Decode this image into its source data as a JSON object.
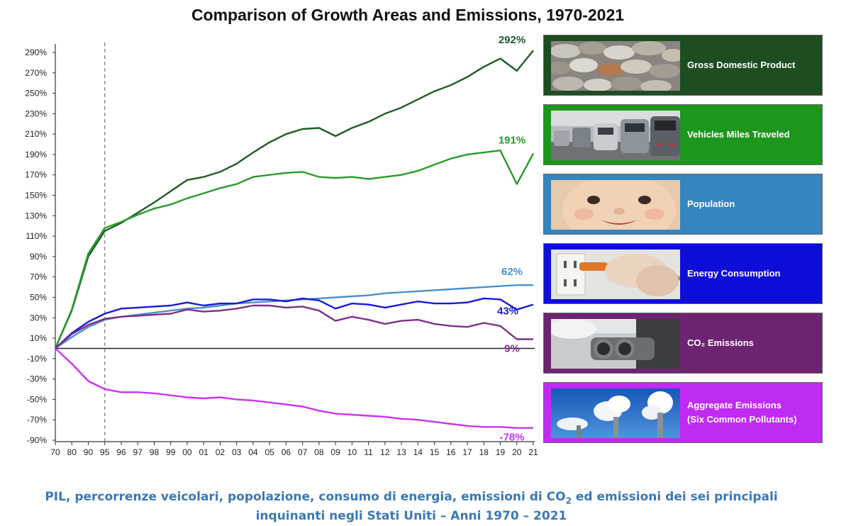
{
  "caption": {
    "line1_a": "PIL, percorrenze veicolari, popolazione, consumo di energia, emissioni di CO",
    "line1_sub": "2",
    "line1_b": " ed emissioni dei sei principali",
    "line2": "inquinanti negli Stati Uniti – Anni 1970 – 2021"
  },
  "chart_data": {
    "type": "line",
    "title": "Comparison of Growth Areas and Emissions, 1970-2021",
    "xlabel": "",
    "ylabel": "",
    "ylim": [
      -90,
      295
    ],
    "y_ticks": [
      "290%",
      "270%",
      "250%",
      "230%",
      "210%",
      "190%",
      "170%",
      "150%",
      "130%",
      "110%",
      "90%",
      "70%",
      "50%",
      "30%",
      "10%",
      "-10%",
      "-30%",
      "-50%",
      "-70%",
      "-90%"
    ],
    "y_tick_values": [
      290,
      270,
      250,
      230,
      210,
      190,
      170,
      150,
      130,
      110,
      90,
      70,
      50,
      30,
      10,
      -10,
      -30,
      -50,
      -70,
      -90
    ],
    "x_ticks": [
      "70",
      "80",
      "90",
      "95",
      "96",
      "97",
      "98",
      "99",
      "00",
      "01",
      "02",
      "03",
      "04",
      "05",
      "06",
      "07",
      "08",
      "09",
      "10",
      "11",
      "12",
      "13",
      "14",
      "15",
      "16",
      "17",
      "18",
      "19",
      "20",
      "21"
    ],
    "reference_line_at": "95",
    "series": [
      {
        "name": "Gross Domestic Product",
        "color": "#1e5c28",
        "end_label": "292%",
        "values": [
          0,
          37,
          90,
          115,
          123,
          133,
          143,
          154,
          165,
          168,
          173,
          181,
          192,
          202,
          210,
          215,
          216,
          208,
          216,
          222,
          230,
          236,
          244,
          252,
          258,
          266,
          276,
          284,
          272,
          292
        ]
      },
      {
        "name": "Vehicles Miles Traveled",
        "color": "#279c27",
        "end_label": "191%",
        "values": [
          0,
          38,
          93,
          118,
          124,
          131,
          137,
          141,
          147,
          152,
          157,
          161,
          168,
          170,
          172,
          173,
          168,
          167,
          168,
          166,
          168,
          170,
          174,
          180,
          186,
          190,
          192,
          194,
          161,
          191
        ]
      },
      {
        "name": "Population",
        "color": "#4a90c8",
        "end_label": "62%",
        "values": [
          0,
          11,
          21,
          28,
          31,
          33,
          35,
          37,
          39,
          40,
          42,
          44,
          45,
          46,
          47,
          48,
          49,
          50,
          51,
          52,
          54,
          55,
          56,
          57,
          58,
          59,
          60,
          61,
          62,
          62
        ]
      },
      {
        "name": "Energy Consumption",
        "color": "#1a1ad6",
        "end_label": "43%",
        "values": [
          0,
          15,
          26,
          34,
          39,
          40,
          41,
          42,
          45,
          42,
          44,
          44,
          48,
          48,
          46,
          49,
          47,
          39,
          44,
          43,
          40,
          43,
          46,
          44,
          44,
          45,
          49,
          48,
          38,
          43
        ]
      },
      {
        "name": "CO2 Emissions",
        "color": "#7e2f88",
        "end_label": "9%",
        "values": [
          0,
          14,
          23,
          29,
          31,
          32,
          33,
          34,
          38,
          36,
          37,
          39,
          42,
          42,
          40,
          41,
          37,
          27,
          31,
          28,
          24,
          27,
          28,
          24,
          22,
          21,
          25,
          22,
          9,
          9
        ]
      },
      {
        "name": "Aggregate Emissions (Six Common Pollutants)",
        "color": "#cc33f2",
        "end_label": "-78%",
        "values": [
          0,
          -15,
          -32,
          -40,
          -43,
          -43,
          -44,
          -46,
          -48,
          -49,
          -48,
          -50,
          -51,
          -53,
          -55,
          -57,
          -61,
          -64,
          -65,
          -66,
          -67,
          -69,
          -70,
          -72,
          -74,
          -76,
          -77,
          -77,
          -78,
          -78
        ]
      }
    ]
  },
  "legend": [
    {
      "label": "Gross Domestic Product",
      "bg": "#1f4d22"
    },
    {
      "label": "Vehicles Miles Traveled",
      "bg": "#1d961d"
    },
    {
      "label": "Population",
      "bg": "#3585be"
    },
    {
      "label": "Energy Consumption",
      "bg": "#0e0ed8"
    },
    {
      "label": "CO₂ Emissions",
      "bg": "#6d2470"
    },
    {
      "label": "Aggregate Emissions",
      "label2": "(Six Common Pollutants)",
      "bg": "#bf2bf2"
    }
  ]
}
